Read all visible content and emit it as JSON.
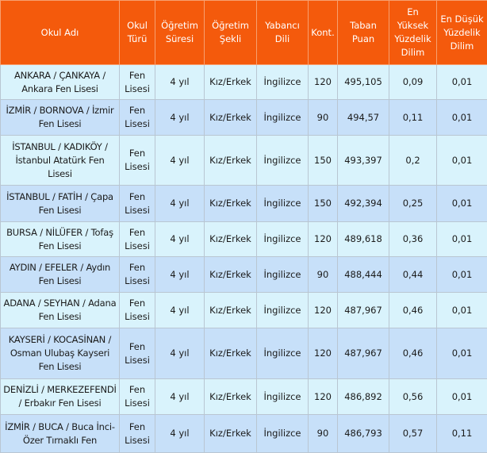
{
  "columns": [
    "Okul Adı",
    "Okul Türü",
    "Öğretim Süresi",
    "Öğretim Şekli",
    "Yabancı Dili",
    "Kont.",
    "Taban Puan",
    "En Yüksek Yüzdelik Dilim",
    "En Düşük Yüzdelik Dilim"
  ],
  "colors": {
    "header": "#f45a0c",
    "row_odd": "#d9f3fc",
    "row_even": "#c7e0f9"
  },
  "rows": [
    [
      "ANKARA / ÇANKAYA / Ankara Fen Lisesi",
      "Fen Lisesi",
      "4 yıl",
      "Kız/Erkek",
      "İngilizce",
      "120",
      "495,105",
      "0,09",
      "0,01"
    ],
    [
      "İZMİR / BORNOVA / İzmir Fen Lisesi",
      "Fen Lisesi",
      "4 yıl",
      "Kız/Erkek",
      "İngilizce",
      "90",
      "494,57",
      "0,11",
      "0,01"
    ],
    [
      "İSTANBUL / KADIKÖY / İstanbul Atatürk Fen Lisesi",
      "Fen Lisesi",
      "4 yıl",
      "Kız/Erkek",
      "İngilizce",
      "150",
      "493,397",
      "0,2",
      "0,01"
    ],
    [
      "İSTANBUL / FATİH / Çapa Fen Lisesi",
      "Fen Lisesi",
      "4 yıl",
      "Kız/Erkek",
      "İngilizce",
      "150",
      "492,394",
      "0,25",
      "0,01"
    ],
    [
      "BURSA / NİLÜFER / Tofaş Fen Lisesi",
      "Fen Lisesi",
      "4 yıl",
      "Kız/Erkek",
      "İngilizce",
      "120",
      "489,618",
      "0,36",
      "0,01"
    ],
    [
      "AYDIN / EFELER / Aydın Fen Lisesi",
      "Fen Lisesi",
      "4 yıl",
      "Kız/Erkek",
      "İngilizce",
      "90",
      "488,444",
      "0,44",
      "0,01"
    ],
    [
      "ADANA / SEYHAN / Adana Fen Lisesi",
      "Fen Lisesi",
      "4 yıl",
      "Kız/Erkek",
      "İngilizce",
      "120",
      "487,967",
      "0,46",
      "0,01"
    ],
    [
      "KAYSERİ / KOCASİNAN / Osman Ulubaş Kayseri Fen Lisesi",
      "Fen Lisesi",
      "4 yıl",
      "Kız/Erkek",
      "İngilizce",
      "120",
      "487,967",
      "0,46",
      "0,01"
    ],
    [
      "DENİZLİ / MERKEZEFENDİ / Erbakır Fen Lisesi",
      "Fen Lisesi",
      "4 yıl",
      "Kız/Erkek",
      "İngilizce",
      "120",
      "486,892",
      "0,56",
      "0,01"
    ],
    [
      "İZMİR / BUCA / Buca İnci-Özer Tırnaklı Fen",
      "Fen Lisesi",
      "4 yıl",
      "Kız/Erkek",
      "İngilizce",
      "90",
      "486,793",
      "0,57",
      "0,11"
    ]
  ]
}
